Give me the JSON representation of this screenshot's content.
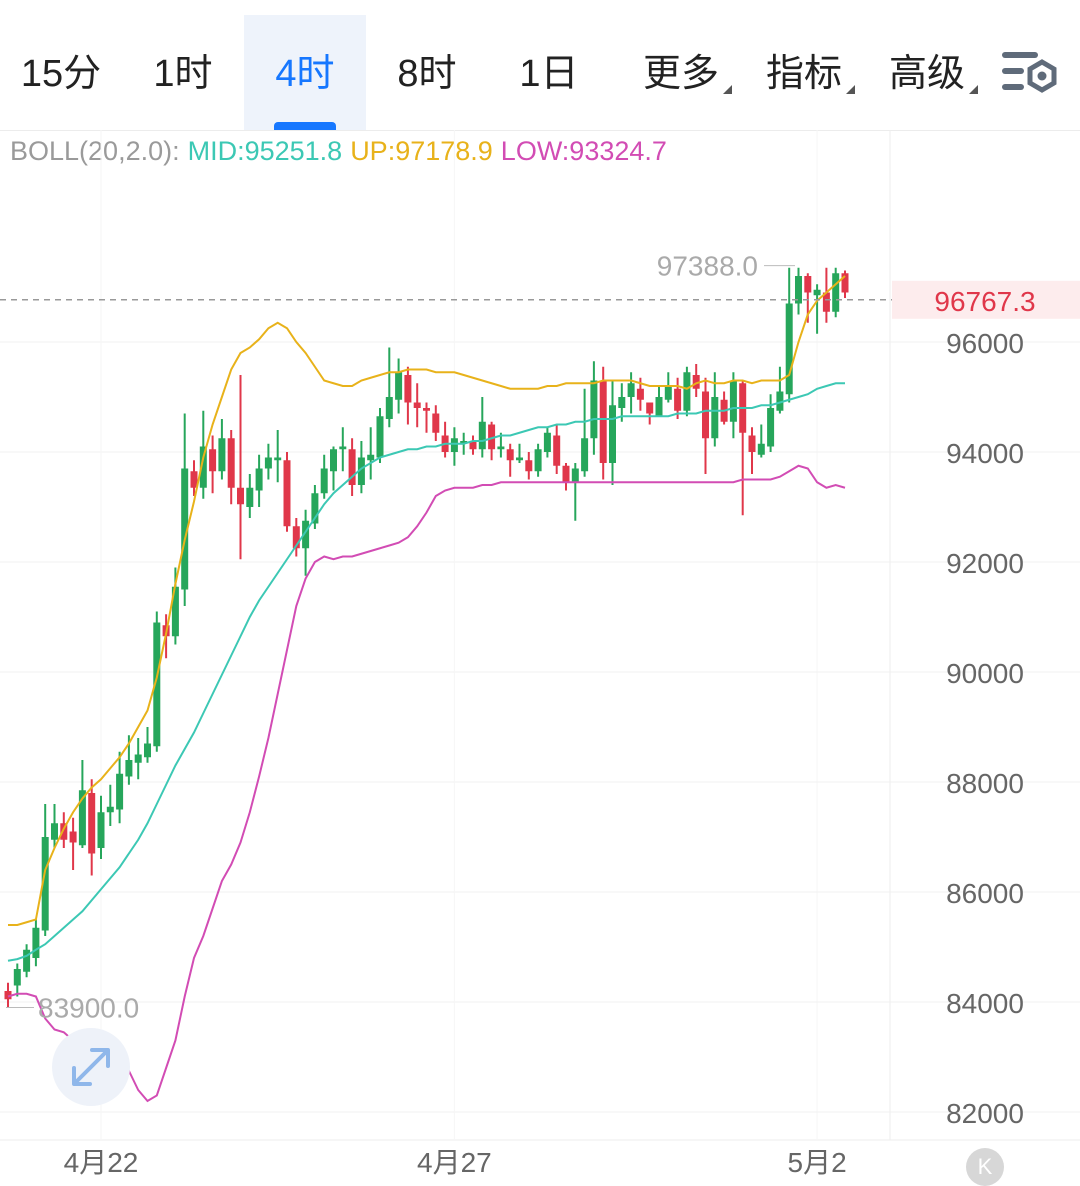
{
  "tabs": [
    {
      "label": "15分",
      "active": false,
      "dropdown": false
    },
    {
      "label": "1时",
      "active": false,
      "dropdown": false
    },
    {
      "label": "4时",
      "active": true,
      "dropdown": false
    },
    {
      "label": "8时",
      "active": false,
      "dropdown": false
    },
    {
      "label": "1日",
      "active": false,
      "dropdown": false
    },
    {
      "label": "更多",
      "active": false,
      "dropdown": true
    },
    {
      "label": "指标",
      "active": false,
      "dropdown": true
    },
    {
      "label": "高级",
      "active": false,
      "dropdown": true
    }
  ],
  "settings_icon": "chart-settings-icon",
  "indicator": {
    "name": "BOLL(20,2.0):",
    "mid": "MID:95251.8",
    "up": "UP:97178.9",
    "low": "LOW:93324.7"
  },
  "colors": {
    "up_candle": "#26a65b",
    "down_candle": "#e0374a",
    "mid_line": "#3cc8b4",
    "upper_line": "#e8b21a",
    "lower_line": "#d24cb4",
    "price_label": "#e0374a",
    "active_tab": "#1677ff"
  },
  "chart_data": {
    "type": "candlestick",
    "interval": "4时",
    "ylim": [
      81500,
      99500
    ],
    "y_ticks": [
      "96000",
      "94000",
      "92000",
      "90000",
      "88000",
      "86000",
      "84000",
      "82000"
    ],
    "x_ticks": [
      "4月22",
      "4月27",
      "5月2"
    ],
    "last_price": "96767.3",
    "max_label": "97388.0",
    "min_label": "83900.0",
    "candles": [
      [
        84200,
        84050,
        84350,
        83900
      ],
      [
        84300,
        84600,
        84700,
        84100
      ],
      [
        84550,
        84950,
        85050,
        84450
      ],
      [
        84800,
        85350,
        85500,
        84650
      ],
      [
        85300,
        87000,
        87600,
        85200
      ],
      [
        86950,
        87250,
        87600,
        86800
      ],
      [
        87250,
        86950,
        87450,
        86800
      ],
      [
        87100,
        86900,
        87350,
        86400
      ],
      [
        86850,
        87850,
        88400,
        86800
      ],
      [
        87800,
        86700,
        88050,
        86300
      ],
      [
        86800,
        87450,
        87750,
        86600
      ],
      [
        87450,
        87550,
        87950,
        87200
      ],
      [
        87500,
        88150,
        88550,
        87250
      ],
      [
        88100,
        88400,
        88850,
        87950
      ],
      [
        88350,
        88500,
        88800,
        88050
      ],
      [
        88450,
        88700,
        89000,
        88350
      ],
      [
        88650,
        90900,
        91100,
        88550
      ],
      [
        90850,
        90650,
        91050,
        90250
      ],
      [
        90650,
        91550,
        91900,
        90500
      ],
      [
        91500,
        93700,
        94700,
        91200
      ],
      [
        93650,
        93350,
        93850,
        93200
      ],
      [
        93350,
        94100,
        94750,
        93150
      ],
      [
        94050,
        93650,
        94300,
        93250
      ],
      [
        93650,
        94250,
        94600,
        93500
      ],
      [
        94250,
        93350,
        94400,
        93050
      ],
      [
        93350,
        93050,
        95400,
        92050
      ],
      [
        93000,
        93350,
        93600,
        92800
      ],
      [
        93300,
        93700,
        93950,
        93000
      ],
      [
        93700,
        93900,
        94150,
        93500
      ],
      [
        93850,
        93900,
        94400,
        93450
      ],
      [
        93850,
        92650,
        94000,
        92550
      ],
      [
        92650,
        92250,
        92800,
        92100
      ],
      [
        92250,
        92750,
        92950,
        91750
      ],
      [
        92700,
        93250,
        93400,
        92600
      ],
      [
        93250,
        93700,
        93950,
        93150
      ],
      [
        93650,
        94050,
        94100,
        93300
      ],
      [
        94050,
        94100,
        94450,
        93650
      ],
      [
        94050,
        93400,
        94250,
        93200
      ],
      [
        93400,
        93900,
        94200,
        93250
      ],
      [
        93850,
        93950,
        94450,
        93500
      ],
      [
        93900,
        94650,
        94800,
        93800
      ],
      [
        94600,
        95000,
        95900,
        94450
      ],
      [
        94950,
        95450,
        95700,
        94700
      ],
      [
        95400,
        94900,
        95550,
        94500
      ],
      [
        94900,
        94800,
        95250,
        94450
      ],
      [
        94800,
        94750,
        94900,
        94350
      ],
      [
        94700,
        94350,
        94850,
        94200
      ],
      [
        94300,
        94000,
        94550,
        93900
      ],
      [
        94000,
        94250,
        94450,
        93750
      ],
      [
        94200,
        94200,
        94350,
        93950
      ],
      [
        94200,
        94050,
        94300,
        93950
      ],
      [
        94050,
        94550,
        95000,
        93900
      ],
      [
        94500,
        94050,
        94550,
        93850
      ],
      [
        94050,
        94100,
        94350,
        93900
      ],
      [
        94050,
        93850,
        94150,
        93550
      ],
      [
        93850,
        93900,
        94150,
        93800
      ],
      [
        93850,
        93650,
        94000,
        93500
      ],
      [
        93650,
        94050,
        94150,
        93550
      ],
      [
        94000,
        94350,
        94450,
        93900
      ],
      [
        94300,
        93750,
        94500,
        93600
      ],
      [
        93750,
        93450,
        93800,
        93300
      ],
      [
        93450,
        93700,
        93800,
        92750
      ],
      [
        93650,
        94250,
        95150,
        93550
      ],
      [
        94250,
        95300,
        95650,
        93950
      ],
      [
        95300,
        93800,
        95550,
        93500
      ],
      [
        93800,
        94850,
        95300,
        93400
      ],
      [
        94800,
        95000,
        95250,
        94550
      ],
      [
        95000,
        95250,
        95450,
        94700
      ],
      [
        95150,
        94950,
        95350,
        94750
      ],
      [
        94900,
        94700,
        94850,
        94500
      ],
      [
        94650,
        95000,
        95200,
        94650
      ],
      [
        94950,
        95200,
        95450,
        94900
      ],
      [
        95150,
        94750,
        95350,
        94600
      ],
      [
        94750,
        95450,
        95550,
        94650
      ],
      [
        95400,
        95150,
        95600,
        95000
      ],
      [
        95100,
        94250,
        95350,
        93600
      ],
      [
        94250,
        95000,
        95450,
        94100
      ],
      [
        94950,
        94550,
        95100,
        94500
      ],
      [
        94550,
        95300,
        95450,
        94250
      ],
      [
        95250,
        94350,
        95300,
        92850
      ],
      [
        94300,
        94000,
        94450,
        93600
      ],
      [
        93950,
        94150,
        94500,
        93900
      ],
      [
        94100,
        94800,
        95050,
        94000
      ],
      [
        94750,
        95100,
        95550,
        94700
      ],
      [
        95050,
        96700,
        97350,
        94900
      ],
      [
        96700,
        97200,
        97350,
        96500
      ],
      [
        97200,
        96900,
        97250,
        96350
      ],
      [
        96850,
        96950,
        97050,
        96150
      ],
      [
        96900,
        96550,
        97350,
        96350
      ],
      [
        96550,
        97250,
        97350,
        96450
      ],
      [
        97250,
        96900,
        97300,
        96800
      ]
    ],
    "series": [
      {
        "name": "MID",
        "values": [
          84750,
          84780,
          84840,
          84950,
          85050,
          85200,
          85350,
          85500,
          85650,
          85850,
          86050,
          86250,
          86450,
          86700,
          86950,
          87250,
          87600,
          87950,
          88300,
          88600,
          88900,
          89250,
          89600,
          89950,
          90300,
          90650,
          91000,
          91300,
          91550,
          91800,
          92050,
          92300,
          92550,
          92800,
          93050,
          93250,
          93400,
          93550,
          93700,
          93800,
          93900,
          93950,
          94000,
          94050,
          94050,
          94100,
          94100,
          94150,
          94150,
          94150,
          94200,
          94200,
          94250,
          94300,
          94300,
          94350,
          94400,
          94450,
          94450,
          94500,
          94500,
          94550,
          94550,
          94600,
          94600,
          94600,
          94650,
          94650,
          94650,
          94650,
          94650,
          94650,
          94700,
          94700,
          94700,
          94750,
          94750,
          94750,
          94800,
          94800,
          94800,
          94850,
          94850,
          94900,
          94950,
          95000,
          95050,
          95150,
          95200,
          95250,
          95250
        ]
      },
      {
        "name": "UP",
        "values": [
          85400,
          85400,
          85450,
          85500,
          86400,
          86800,
          87150,
          87450,
          87700,
          87900,
          88050,
          88250,
          88450,
          88700,
          89000,
          89300,
          89900,
          90700,
          91600,
          92400,
          93100,
          93900,
          94500,
          95000,
          95500,
          95800,
          95900,
          96050,
          96250,
          96350,
          96250,
          96000,
          95800,
          95550,
          95300,
          95250,
          95200,
          95200,
          95300,
          95350,
          95400,
          95450,
          95450,
          95500,
          95500,
          95500,
          95450,
          95450,
          95450,
          95400,
          95350,
          95300,
          95250,
          95200,
          95150,
          95150,
          95150,
          95150,
          95200,
          95200,
          95250,
          95250,
          95250,
          95250,
          95300,
          95300,
          95300,
          95300,
          95250,
          95200,
          95200,
          95200,
          95200,
          95150,
          95250,
          95300,
          95250,
          95250,
          95300,
          95300,
          95250,
          95300,
          95300,
          95300,
          95400,
          96000,
          96500,
          96750,
          96900,
          97050,
          97200
        ]
      },
      {
        "name": "LOW",
        "values": [
          84100,
          84150,
          84150,
          84100,
          83700,
          83500,
          83450,
          83300,
          83300,
          83350,
          83350,
          83400,
          83100,
          82750,
          82400,
          82200,
          82300,
          82800,
          83300,
          84100,
          84800,
          85200,
          85700,
          86200,
          86500,
          86900,
          87450,
          88100,
          88800,
          89600,
          90400,
          91200,
          91700,
          92000,
          92100,
          92050,
          92100,
          92100,
          92150,
          92200,
          92250,
          92300,
          92350,
          92450,
          92650,
          92900,
          93200,
          93300,
          93350,
          93350,
          93350,
          93400,
          93400,
          93450,
          93450,
          93450,
          93450,
          93450,
          93450,
          93450,
          93450,
          93450,
          93450,
          93450,
          93450,
          93450,
          93450,
          93450,
          93450,
          93450,
          93450,
          93450,
          93450,
          93450,
          93450,
          93450,
          93450,
          93450,
          93450,
          93500,
          93500,
          93500,
          93500,
          93550,
          93650,
          93750,
          93700,
          93450,
          93350,
          93400,
          93350
        ]
      }
    ]
  }
}
